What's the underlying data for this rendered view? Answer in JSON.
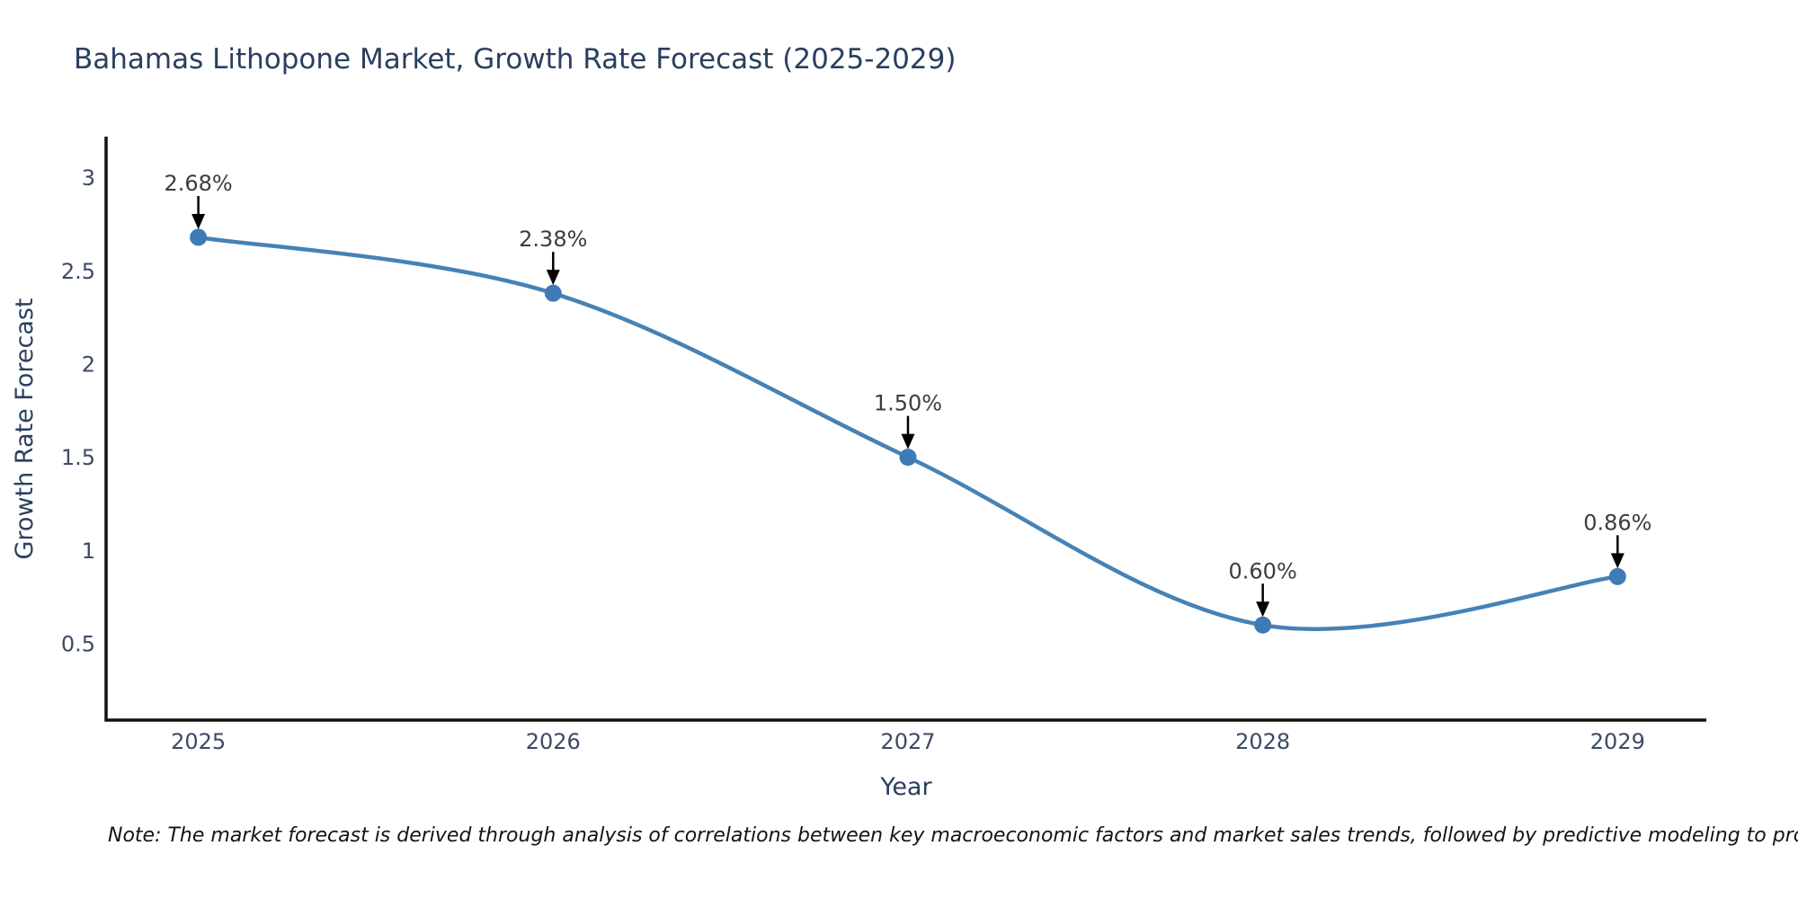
{
  "chart_data": {
    "type": "line",
    "title": "Bahamas Lithopone Market, Growth Rate Forecast (2025-2029)",
    "xlabel": "Year",
    "ylabel": "Growth Rate Forecast",
    "x": [
      2025,
      2026,
      2027,
      2028,
      2029
    ],
    "values": [
      2.68,
      2.38,
      1.5,
      0.6,
      0.86
    ],
    "point_labels": [
      "2.68%",
      "2.38%",
      "1.50%",
      "0.60%",
      "0.86%"
    ],
    "yticks": [
      0.5,
      1,
      1.5,
      2,
      2.5,
      3
    ],
    "ytick_labels": [
      "0.5",
      "1",
      "1.5",
      "2",
      "2.5",
      "3"
    ],
    "xtick_labels": [
      "2025",
      "2026",
      "2027",
      "2028",
      "2029"
    ],
    "xlim": [
      2024.74,
      2029.25
    ],
    "ylim": [
      0.09,
      3.22
    ],
    "grid": false,
    "legend": "none",
    "line_shape": "spline",
    "colors": {
      "line": "#4682b4",
      "marker": "#3f7ab7",
      "arrow": "#000000",
      "annotation_text": "#3d3d3d",
      "title_text": "#2a3f5f",
      "tick_text": "#3b4a66",
      "axis_line": "#111111",
      "note_text": "#141414"
    }
  },
  "footnote": "Note: The market forecast is derived through analysis of correlations between key macroeconomic factors and market sales trends, followed by predictive modeling to project future sales"
}
